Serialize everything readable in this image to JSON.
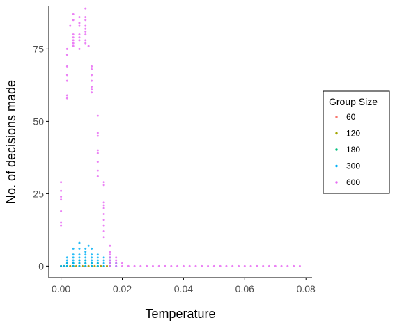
{
  "chart_data": {
    "type": "scatter",
    "title": "",
    "xlabel": "Temperature",
    "ylabel": "No. of decisions made",
    "xlim": [
      -0.004,
      0.082
    ],
    "ylim": [
      -4,
      90
    ],
    "x_ticks": [
      0.0,
      0.02,
      0.04,
      0.06,
      0.08
    ],
    "x_tick_labels": [
      "0.00",
      "0.02",
      "0.04",
      "0.06",
      "0.08"
    ],
    "y_ticks": [
      0,
      25,
      50,
      75
    ],
    "y_tick_labels": [
      "0",
      "25",
      "50",
      "75"
    ],
    "grid": false,
    "legend": {
      "title": "Group Size",
      "placement": "right"
    },
    "series": [
      {
        "name": "60",
        "color": "#F8766D",
        "points": [
          [
            0.0,
            0
          ],
          [
            0.001,
            0
          ],
          [
            0.002,
            0
          ],
          [
            0.003,
            0
          ],
          [
            0.004,
            0
          ],
          [
            0.005,
            0
          ],
          [
            0.006,
            0
          ],
          [
            0.007,
            0
          ],
          [
            0.008,
            0
          ],
          [
            0.009,
            0
          ],
          [
            0.01,
            0
          ],
          [
            0.011,
            0
          ],
          [
            0.012,
            0
          ],
          [
            0.013,
            0
          ],
          [
            0.014,
            0
          ],
          [
            0.015,
            0
          ],
          [
            0.016,
            0
          ]
        ]
      },
      {
        "name": "120",
        "color": "#A3A500",
        "points": [
          [
            0.0,
            0
          ],
          [
            0.001,
            0
          ],
          [
            0.002,
            0
          ],
          [
            0.003,
            0
          ],
          [
            0.004,
            0
          ],
          [
            0.005,
            0
          ],
          [
            0.006,
            0
          ],
          [
            0.007,
            0
          ],
          [
            0.008,
            0
          ],
          [
            0.009,
            0
          ],
          [
            0.01,
            0
          ],
          [
            0.011,
            0
          ],
          [
            0.012,
            0
          ],
          [
            0.013,
            0
          ],
          [
            0.014,
            0
          ],
          [
            0.015,
            0
          ],
          [
            0.016,
            0
          ]
        ]
      },
      {
        "name": "180",
        "color": "#00BF7D",
        "points": [
          [
            0.0,
            0
          ],
          [
            0.002,
            0
          ],
          [
            0.002,
            1
          ],
          [
            0.004,
            0
          ],
          [
            0.004,
            1
          ],
          [
            0.006,
            0
          ],
          [
            0.006,
            1
          ],
          [
            0.006,
            2
          ],
          [
            0.008,
            0
          ],
          [
            0.008,
            1
          ],
          [
            0.008,
            2
          ],
          [
            0.01,
            0
          ],
          [
            0.01,
            1
          ],
          [
            0.012,
            0
          ],
          [
            0.012,
            1
          ],
          [
            0.014,
            0
          ],
          [
            0.016,
            0
          ]
        ]
      },
      {
        "name": "300",
        "color": "#00B0F6",
        "points": [
          [
            0.0,
            0
          ],
          [
            0.001,
            0
          ],
          [
            0.002,
            0
          ],
          [
            0.002,
            1
          ],
          [
            0.002,
            2
          ],
          [
            0.002,
            3
          ],
          [
            0.004,
            0
          ],
          [
            0.004,
            1
          ],
          [
            0.004,
            2
          ],
          [
            0.004,
            3
          ],
          [
            0.004,
            4
          ],
          [
            0.004,
            6
          ],
          [
            0.006,
            0
          ],
          [
            0.006,
            1
          ],
          [
            0.006,
            2
          ],
          [
            0.006,
            3
          ],
          [
            0.006,
            4
          ],
          [
            0.006,
            6
          ],
          [
            0.006,
            8
          ],
          [
            0.008,
            0
          ],
          [
            0.008,
            1
          ],
          [
            0.008,
            2
          ],
          [
            0.008,
            3
          ],
          [
            0.008,
            4
          ],
          [
            0.008,
            5
          ],
          [
            0.008,
            6
          ],
          [
            0.009,
            7
          ],
          [
            0.01,
            0
          ],
          [
            0.01,
            1
          ],
          [
            0.01,
            2
          ],
          [
            0.01,
            3
          ],
          [
            0.01,
            4
          ],
          [
            0.01,
            6
          ],
          [
            0.012,
            0
          ],
          [
            0.012,
            1
          ],
          [
            0.012,
            2
          ],
          [
            0.012,
            3
          ],
          [
            0.012,
            4
          ],
          [
            0.014,
            0
          ],
          [
            0.014,
            1
          ],
          [
            0.014,
            2
          ],
          [
            0.014,
            3
          ],
          [
            0.016,
            0
          ],
          [
            0.016,
            1
          ],
          [
            0.016,
            2
          ],
          [
            0.016,
            3
          ],
          [
            0.018,
            0
          ],
          [
            0.018,
            1
          ]
        ]
      },
      {
        "name": "600",
        "color": "#E76BF3",
        "points": [
          [
            0.0,
            29
          ],
          [
            0.0,
            26
          ],
          [
            0.0,
            24
          ],
          [
            0.0,
            23
          ],
          [
            0.0,
            19
          ],
          [
            0.0,
            15
          ],
          [
            0.0,
            14
          ],
          [
            0.002,
            75
          ],
          [
            0.002,
            73
          ],
          [
            0.002,
            69
          ],
          [
            0.002,
            66
          ],
          [
            0.002,
            64
          ],
          [
            0.002,
            59
          ],
          [
            0.002,
            58
          ],
          [
            0.003,
            83
          ],
          [
            0.004,
            87
          ],
          [
            0.004,
            85
          ],
          [
            0.004,
            80
          ],
          [
            0.004,
            79
          ],
          [
            0.004,
            78
          ],
          [
            0.004,
            77
          ],
          [
            0.004,
            76
          ],
          [
            0.006,
            86
          ],
          [
            0.006,
            84
          ],
          [
            0.006,
            83
          ],
          [
            0.006,
            80
          ],
          [
            0.006,
            79
          ],
          [
            0.006,
            78
          ],
          [
            0.006,
            75
          ],
          [
            0.008,
            89
          ],
          [
            0.008,
            86
          ],
          [
            0.008,
            85
          ],
          [
            0.008,
            83
          ],
          [
            0.008,
            82
          ],
          [
            0.008,
            81
          ],
          [
            0.008,
            80
          ],
          [
            0.008,
            78
          ],
          [
            0.008,
            77
          ],
          [
            0.009,
            76
          ],
          [
            0.01,
            69
          ],
          [
            0.01,
            68
          ],
          [
            0.01,
            66
          ],
          [
            0.01,
            64
          ],
          [
            0.01,
            62
          ],
          [
            0.01,
            61
          ],
          [
            0.01,
            60
          ],
          [
            0.012,
            52
          ],
          [
            0.012,
            46
          ],
          [
            0.012,
            45
          ],
          [
            0.012,
            40
          ],
          [
            0.012,
            39
          ],
          [
            0.012,
            36
          ],
          [
            0.012,
            33
          ],
          [
            0.012,
            31
          ],
          [
            0.014,
            29
          ],
          [
            0.014,
            28
          ],
          [
            0.014,
            22
          ],
          [
            0.014,
            21
          ],
          [
            0.014,
            20
          ],
          [
            0.014,
            18
          ],
          [
            0.014,
            16
          ],
          [
            0.014,
            14
          ],
          [
            0.014,
            12
          ],
          [
            0.014,
            10
          ],
          [
            0.016,
            7
          ],
          [
            0.016,
            5
          ],
          [
            0.016,
            4
          ],
          [
            0.016,
            3
          ],
          [
            0.016,
            2
          ],
          [
            0.016,
            1
          ],
          [
            0.016,
            0
          ],
          [
            0.018,
            3
          ],
          [
            0.018,
            2
          ],
          [
            0.018,
            1
          ],
          [
            0.018,
            0
          ],
          [
            0.02,
            1
          ],
          [
            0.02,
            0
          ],
          [
            0.022,
            0
          ],
          [
            0.024,
            0
          ],
          [
            0.026,
            0
          ],
          [
            0.028,
            0
          ],
          [
            0.03,
            0
          ],
          [
            0.032,
            0
          ],
          [
            0.034,
            0
          ],
          [
            0.036,
            0
          ],
          [
            0.038,
            0
          ],
          [
            0.04,
            0
          ],
          [
            0.042,
            0
          ],
          [
            0.044,
            0
          ],
          [
            0.046,
            0
          ],
          [
            0.048,
            0
          ],
          [
            0.05,
            0
          ],
          [
            0.052,
            0
          ],
          [
            0.054,
            0
          ],
          [
            0.056,
            0
          ],
          [
            0.058,
            0
          ],
          [
            0.06,
            0
          ],
          [
            0.062,
            0
          ],
          [
            0.064,
            0
          ],
          [
            0.066,
            0
          ],
          [
            0.068,
            0
          ],
          [
            0.07,
            0
          ],
          [
            0.072,
            0
          ],
          [
            0.074,
            0
          ],
          [
            0.076,
            0
          ],
          [
            0.078,
            0
          ]
        ]
      }
    ]
  }
}
